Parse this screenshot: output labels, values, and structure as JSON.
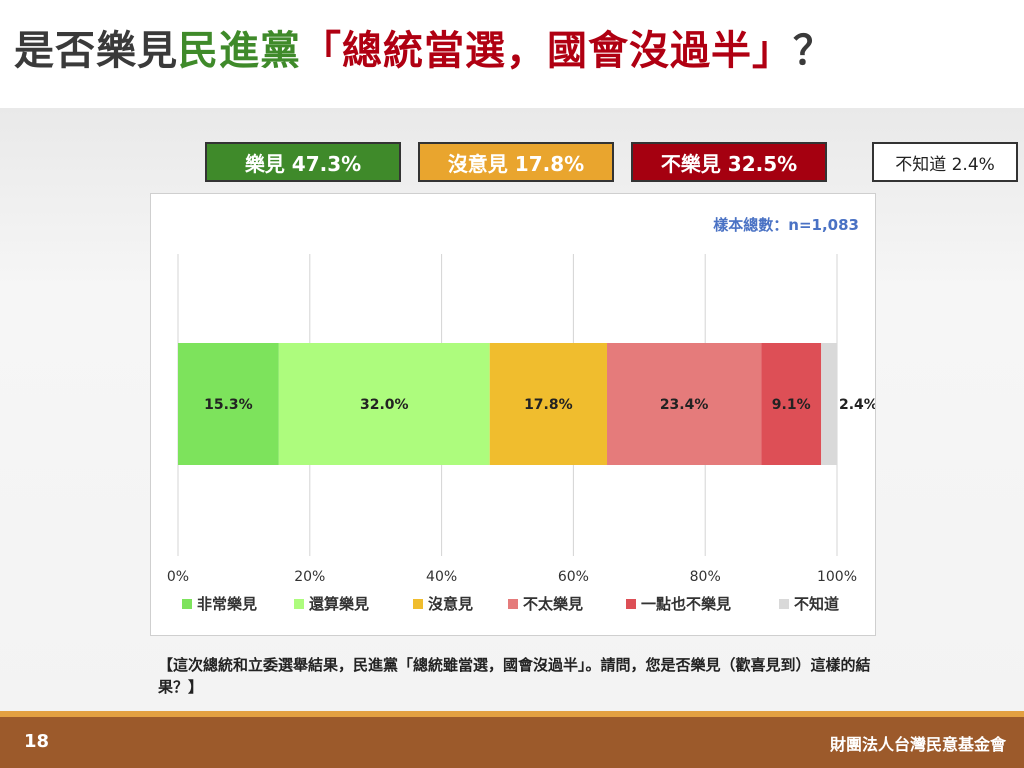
{
  "title": {
    "part1": "是否樂見",
    "part2": "民進黨",
    "part3": "「總統當選，國會沒過半」",
    "part4": "？"
  },
  "summary": [
    {
      "label": "樂見 47.3%",
      "bg": "#3f8a2a",
      "fg": "#ffffff"
    },
    {
      "label": "沒意見 17.8%",
      "bg": "#e9a52e",
      "fg": "#ffffff"
    },
    {
      "label": "不樂見 32.5%",
      "bg": "#a50010",
      "fg": "#ffffff"
    },
    {
      "label": "不知道 2.4%",
      "bg": "#ffffff",
      "fg": "#222222"
    }
  ],
  "chart_data": {
    "type": "bar",
    "orientation": "horizontal-stacked",
    "sample_note": "樣本總數：n=1,083",
    "xlim": [
      0,
      100
    ],
    "x_ticks": [
      "0%",
      "20%",
      "40%",
      "60%",
      "80%",
      "100%"
    ],
    "grid": true,
    "legend_position": "bottom",
    "series": [
      {
        "name": "非常樂見",
        "values": [
          15.3
        ],
        "label": "15.3%",
        "color": "#7de35c"
      },
      {
        "name": "還算樂見",
        "values": [
          32.0
        ],
        "label": "32.0%",
        "color": "#adfc7d"
      },
      {
        "name": "沒意見",
        "values": [
          17.8
        ],
        "label": "17.8%",
        "color": "#f0bd2e"
      },
      {
        "name": "不太樂見",
        "values": [
          23.4
        ],
        "label": "23.4%",
        "color": "#e57b7b"
      },
      {
        "name": "一點也不樂見",
        "values": [
          9.1
        ],
        "label": "9.1%",
        "color": "#dd4f56"
      },
      {
        "name": "不知道",
        "values": [
          2.4
        ],
        "label": "2.4%",
        "color": "#d9d9d9"
      }
    ]
  },
  "question": "【這次總統和立委選舉結果，民進黨「總統雖當選，國會沒過半」。請問，您是否樂見（歡喜見到）這樣的結果？】",
  "footer": {
    "page_number": "18",
    "organization": "財團法人台灣民意基金會"
  }
}
